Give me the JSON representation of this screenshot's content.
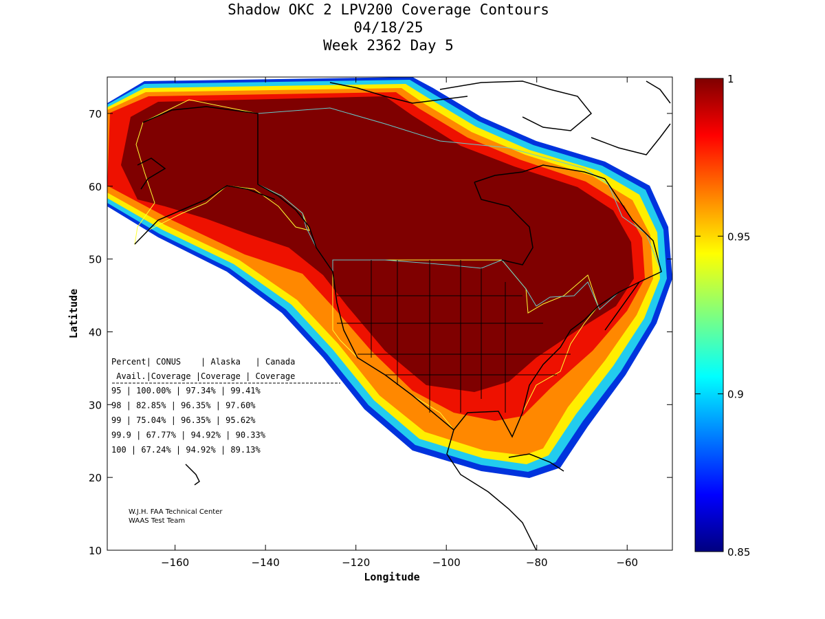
{
  "title": {
    "line1": "Shadow OKC 2 LPV200 Coverage Contours",
    "line2": "04/18/25",
    "line3": "Week 2362 Day 5"
  },
  "axes": {
    "xlabel": "Longitude",
    "ylabel": "Latitude",
    "xlim": [
      -175,
      -50
    ],
    "ylim": [
      10,
      75
    ],
    "xticks": [
      -160,
      -140,
      -120,
      -100,
      -80,
      -60
    ],
    "yticks": [
      10,
      20,
      30,
      40,
      50,
      60,
      70
    ]
  },
  "colorbar": {
    "range": [
      0.85,
      1
    ],
    "ticks": [
      "1",
      "0.95",
      "0.9",
      "0.85"
    ],
    "tick_values": [
      1,
      0.95,
      0.9,
      0.85
    ],
    "colormap": "jet"
  },
  "table": {
    "header1": [
      "Percent",
      "CONUS",
      "Alaska",
      "Canada"
    ],
    "header2": [
      "Avail.",
      "Coverage",
      "Coverage",
      "Coverage"
    ],
    "rows": [
      [
        "95",
        "100.00%",
        "97.34%",
        "99.41%"
      ],
      [
        "98",
        "82.85%",
        "96.35%",
        "97.60%"
      ],
      [
        "99",
        "75.04%",
        "96.35%",
        "95.62%"
      ],
      [
        "99.9",
        "67.77%",
        "94.92%",
        "90.33%"
      ],
      [
        "100",
        "67.24%",
        "94.92%",
        "89.13%"
      ]
    ]
  },
  "credits": {
    "line1": "W.J.H. FAA Technical Center",
    "line2": "WAAS Test Team"
  },
  "colors": {
    "dark_red": "#7f0000",
    "red": "#ee1100",
    "orange": "#ff8800",
    "yellow": "#ffee00",
    "cyan": "#22ccee",
    "blue": "#0022dd",
    "conus_boundary": "#ffff33",
    "canada_boundary": "#66cccc"
  }
}
